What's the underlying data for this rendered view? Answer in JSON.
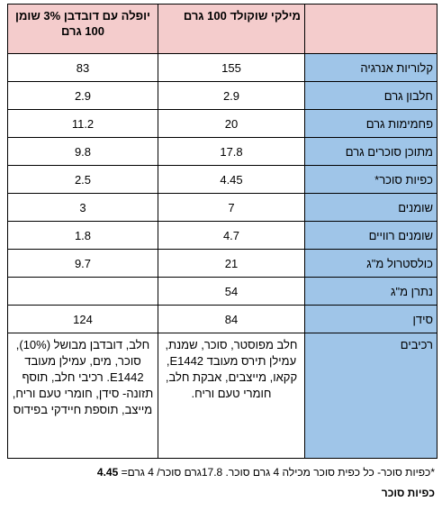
{
  "table": {
    "header": {
      "col1": "יופלה עם דובדבן 3% שומן 100 גרם",
      "col2": "מילקי שוקולד 100 גרם",
      "col3": ""
    },
    "rows": [
      {
        "label": "קלוריות אנרגיה",
        "a": "83",
        "b": "155"
      },
      {
        "label": "חלבון גרם",
        "a": "2.9",
        "b": "2.9"
      },
      {
        "label": "פחמימות גרם",
        "a": "11.2",
        "b": "20"
      },
      {
        "label": "מתוכן סוכרים גרם",
        "a": "9.8",
        "b": "17.8"
      },
      {
        "label": "כפיות סוכר*",
        "a": "2.5",
        "b": "4.45"
      },
      {
        "label": "שומנים",
        "a": "3",
        "b": "7"
      },
      {
        "label": "שומנים רוויים",
        "a": "1.8",
        "b": "4.7"
      },
      {
        "label": "כולסטרול מ\"ג",
        "a": "9.7",
        "b": "21"
      },
      {
        "label": "נתרן מ\"ג",
        "a": "",
        "b": "54"
      },
      {
        "label": "סידן",
        "a": "124",
        "b": "84"
      }
    ],
    "ingredients": {
      "label": "רכיבים",
      "a": "חלב, דובדבן מבושל (10%), סוכר, מים, עמילן מעובד E1442. רכיבי חלב, תוסף תזונה- סידן, חומרי טעם וריח, מייצב, תוספת חיידקי בפידוס",
      "b": "חלב מפוסטר, סוכר, שמנת, עמילן תירס מעובד E1442, קקאו, מייצבים, אבקת חלב, חומרי טעם וריח."
    }
  },
  "footnote": {
    "text": "*כפיות סוכר- כל כפית סוכר מכילה 4 גרם סוכר. 17.8גרם סוכר/ 4 גרם=",
    "value": "4.45",
    "unit": "כפיות סוכר"
  }
}
